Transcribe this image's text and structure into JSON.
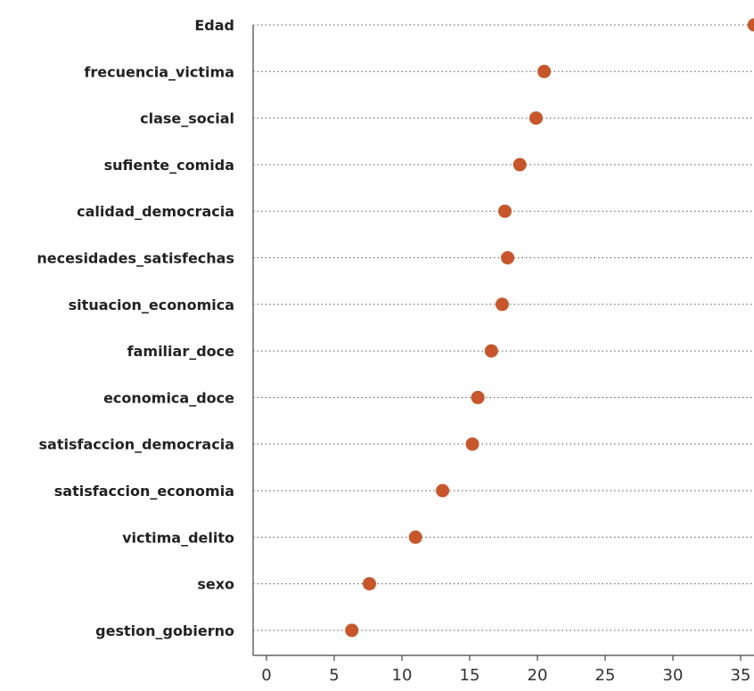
{
  "chart_data": {
    "type": "scatter",
    "title": "",
    "xlabel": "",
    "ylabel": "",
    "xlim": [
      -1,
      36
    ],
    "x_ticks": [
      0,
      5,
      10,
      15,
      20,
      25,
      30,
      35
    ],
    "grid": "horizontal dotted",
    "marker_color": "#C9562A",
    "categories": [
      "Edad",
      "frecuencia_victima",
      "clase_social",
      "sufiente_comida",
      "calidad_democracia",
      "necesidades_satisfechas",
      "situacion_economica",
      "familiar_doce",
      "economica_doce",
      "satisfaccion_democracia",
      "satisfaccion_economia",
      "victima_delito",
      "sexo",
      "gestion_gobierno"
    ],
    "values": [
      36.0,
      20.5,
      19.9,
      18.7,
      17.6,
      17.8,
      17.4,
      16.6,
      15.6,
      15.2,
      13.0,
      11.0,
      7.6,
      6.3
    ]
  }
}
